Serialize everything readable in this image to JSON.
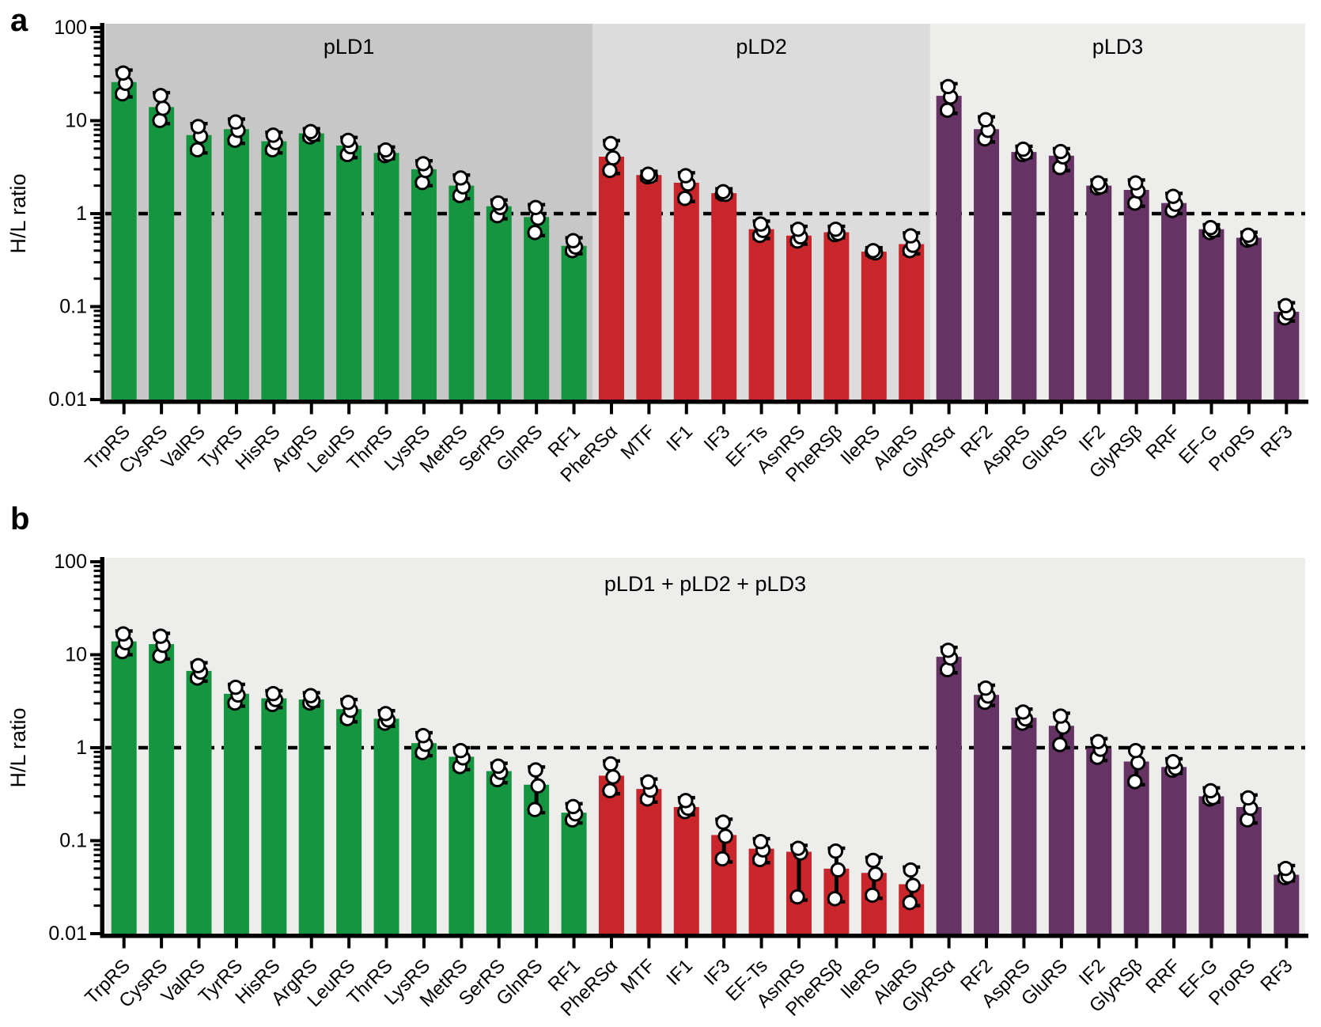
{
  "figure": {
    "ylabel": "H/L ratio",
    "ytick_labels": [
      "100",
      "10",
      "1",
      "0.1",
      "0.01"
    ],
    "panels": [
      {
        "letter": "a",
        "region_titles": [
          "pLD1",
          "pLD2",
          "pLD3"
        ]
      },
      {
        "letter": "b",
        "title": "pLD1 + pLD2 + pLD3"
      }
    ]
  },
  "colors": {
    "green": "#169540",
    "red": "#C8262B",
    "purple": "#653364",
    "bg_pld1": "#C7C7C7",
    "bg_pld2": "#DCDCDC",
    "bg_pld3": "#EDEDEC",
    "bg_panel_b": "#EDEDEC",
    "reference_line": "#000000",
    "error_bar": "#000000",
    "point_fill": "#FFFFFF",
    "point_stroke": "#000000"
  },
  "groups": [
    {
      "name": "pLD1",
      "count": 13,
      "bar_color": "#169540",
      "region_color": "#C7C7C7"
    },
    {
      "name": "pLD2",
      "count": 9,
      "bar_color": "#C8262B",
      "region_color": "#DCDCDC"
    },
    {
      "name": "pLD3",
      "count": 10,
      "bar_color": "#653364",
      "region_color": "#EDEDEC"
    }
  ],
  "chart_data": [
    {
      "type": "bar",
      "panel": "a",
      "title_labels": [
        "pLD1",
        "pLD2",
        "pLD3"
      ],
      "ylabel": "H/L ratio",
      "yscale": "log",
      "ylim": [
        0.01,
        100
      ],
      "reference_line": 1,
      "legend_position": "none",
      "grid": false,
      "bars": [
        {
          "label": "TrpRS",
          "group": "pLD1",
          "v": 26,
          "err": [
            18,
            35
          ]
        },
        {
          "label": "CysRS",
          "group": "pLD1",
          "v": 14,
          "err": [
            9.3,
            20
          ]
        },
        {
          "label": "ValRS",
          "group": "pLD1",
          "v": 7.0,
          "err": [
            4.5,
            9.3
          ]
        },
        {
          "label": "TyrRS",
          "group": "pLD1",
          "v": 8.1,
          "err": [
            5.7,
            10.4
          ]
        },
        {
          "label": "HisRS",
          "group": "pLD1",
          "v": 6.0,
          "err": [
            4.5,
            7.5
          ]
        },
        {
          "label": "ArgRS",
          "group": "pLD1",
          "v": 7.3,
          "err": [
            6.2,
            8.2
          ]
        },
        {
          "label": "LeuRS",
          "group": "pLD1",
          "v": 5.4,
          "err": [
            4.0,
            6.6
          ]
        },
        {
          "label": "ThrRS",
          "group": "pLD1",
          "v": 4.5,
          "err": [
            3.9,
            5.2
          ]
        },
        {
          "label": "LysRS",
          "group": "pLD1",
          "v": 3.0,
          "err": [
            2.0,
            3.7
          ]
        },
        {
          "label": "MetRS",
          "group": "pLD1",
          "v": 2.0,
          "err": [
            1.45,
            2.6
          ]
        },
        {
          "label": "SerRS",
          "group": "pLD1",
          "v": 1.2,
          "err": [
            0.88,
            1.4
          ]
        },
        {
          "label": "GlnRS",
          "group": "pLD1",
          "v": 0.92,
          "err": [
            0.58,
            1.25
          ]
        },
        {
          "label": "RF1",
          "group": "pLD1",
          "v": 0.45,
          "err": [
            0.37,
            0.55
          ]
        },
        {
          "label": "PheRSα",
          "group": "pLD2",
          "v": 4.1,
          "err": [
            2.7,
            6.1
          ]
        },
        {
          "label": "MTF",
          "group": "pLD2",
          "v": 2.6,
          "err": [
            2.3,
            2.85
          ]
        },
        {
          "label": "IF1",
          "group": "pLD2",
          "v": 2.15,
          "err": [
            1.35,
            2.75
          ]
        },
        {
          "label": "IF3",
          "group": "pLD2",
          "v": 1.66,
          "err": [
            1.5,
            1.85
          ]
        },
        {
          "label": "EF-Ts",
          "group": "pLD2",
          "v": 0.68,
          "err": [
            0.54,
            0.83
          ]
        },
        {
          "label": "AsnRS",
          "group": "pLD2",
          "v": 0.58,
          "err": [
            0.47,
            0.73
          ]
        },
        {
          "label": "PheRSβ",
          "group": "pLD2",
          "v": 0.63,
          "err": [
            0.55,
            0.73
          ]
        },
        {
          "label": "IleRS",
          "group": "pLD2",
          "v": 0.39,
          "err": [
            0.36,
            0.43
          ]
        },
        {
          "label": "AlaRS",
          "group": "pLD2",
          "v": 0.47,
          "err": [
            0.37,
            0.62
          ]
        },
        {
          "label": "GlyRSα",
          "group": "pLD3",
          "v": 18.5,
          "err": [
            12,
            25
          ]
        },
        {
          "label": "RF2",
          "group": "pLD3",
          "v": 8.1,
          "err": [
            5.9,
            11
          ]
        },
        {
          "label": "AspRS",
          "group": "pLD3",
          "v": 4.6,
          "err": [
            4.0,
            5.3
          ]
        },
        {
          "label": "GluRS",
          "group": "pLD3",
          "v": 4.2,
          "err": [
            2.9,
            5.0
          ]
        },
        {
          "label": "IF2",
          "group": "pLD3",
          "v": 2.0,
          "err": [
            1.75,
            2.3
          ]
        },
        {
          "label": "GlyRSβ",
          "group": "pLD3",
          "v": 1.8,
          "err": [
            1.2,
            2.3
          ]
        },
        {
          "label": "RRF",
          "group": "pLD3",
          "v": 1.3,
          "err": [
            1.0,
            1.65
          ]
        },
        {
          "label": "EF-G",
          "group": "pLD3",
          "v": 0.68,
          "err": [
            0.58,
            0.76
          ]
        },
        {
          "label": "ProRS",
          "group": "pLD3",
          "v": 0.55,
          "err": [
            0.48,
            0.63
          ]
        },
        {
          "label": "RF3",
          "group": "pLD3",
          "v": 0.088,
          "err": [
            0.07,
            0.11
          ]
        }
      ]
    },
    {
      "type": "bar",
      "panel": "b",
      "title": "pLD1 + pLD2 + pLD3",
      "ylabel": "H/L ratio",
      "yscale": "log",
      "ylim": [
        0.01,
        100
      ],
      "reference_line": 1,
      "legend_position": "none",
      "grid": false,
      "bars": [
        {
          "label": "TrpRS",
          "group": "pLD1",
          "v": 13.9,
          "err": [
            10,
            18
          ]
        },
        {
          "label": "CysRS",
          "group": "pLD1",
          "v": 13.0,
          "err": [
            9,
            17
          ]
        },
        {
          "label": "ValRS",
          "group": "pLD1",
          "v": 6.7,
          "err": [
            5.2,
            8.2
          ]
        },
        {
          "label": "TyrRS",
          "group": "pLD1",
          "v": 3.8,
          "err": [
            2.8,
            4.8
          ]
        },
        {
          "label": "HisRS",
          "group": "pLD1",
          "v": 3.4,
          "err": [
            2.7,
            4.1
          ]
        },
        {
          "label": "ArgRS",
          "group": "pLD1",
          "v": 3.3,
          "err": [
            2.8,
            3.9
          ]
        },
        {
          "label": "LeuRS",
          "group": "pLD1",
          "v": 2.6,
          "err": [
            1.9,
            3.3
          ]
        },
        {
          "label": "ThrRS",
          "group": "pLD1",
          "v": 2.05,
          "err": [
            1.7,
            2.5
          ]
        },
        {
          "label": "LysRS",
          "group": "pLD1",
          "v": 1.12,
          "err": [
            0.82,
            1.45
          ]
        },
        {
          "label": "MetRS",
          "group": "pLD1",
          "v": 0.8,
          "err": [
            0.58,
            1.0
          ]
        },
        {
          "label": "SerRS",
          "group": "pLD1",
          "v": 0.56,
          "err": [
            0.42,
            0.68
          ]
        },
        {
          "label": "GlnRS",
          "group": "pLD1",
          "v": 0.4,
          "err": [
            0.2,
            0.62
          ]
        },
        {
          "label": "RF1",
          "group": "pLD1",
          "v": 0.2,
          "err": [
            0.155,
            0.25
          ]
        },
        {
          "label": "PheRSα",
          "group": "pLD2",
          "v": 0.5,
          "err": [
            0.32,
            0.72
          ]
        },
        {
          "label": "MTF",
          "group": "pLD2",
          "v": 0.36,
          "err": [
            0.26,
            0.46
          ]
        },
        {
          "label": "IF1",
          "group": "pLD2",
          "v": 0.23,
          "err": [
            0.19,
            0.29
          ]
        },
        {
          "label": "IF3",
          "group": "pLD2",
          "v": 0.115,
          "err": [
            0.059,
            0.17
          ]
        },
        {
          "label": "EF-Ts",
          "group": "pLD2",
          "v": 0.082,
          "err": [
            0.058,
            0.105
          ]
        },
        {
          "label": "AsnRS",
          "group": "pLD2",
          "v": 0.076,
          "err": [
            0.023,
            0.089
          ]
        },
        {
          "label": "PheRSβ",
          "group": "pLD2",
          "v": 0.05,
          "err": [
            0.022,
            0.083
          ]
        },
        {
          "label": "IleRS",
          "group": "pLD2",
          "v": 0.045,
          "err": [
            0.024,
            0.066
          ]
        },
        {
          "label": "AlaRS",
          "group": "pLD2",
          "v": 0.034,
          "err": [
            0.02,
            0.052
          ]
        },
        {
          "label": "GlyRSα",
          "group": "pLD3",
          "v": 9.5,
          "err": [
            6.4,
            12
          ]
        },
        {
          "label": "RF2",
          "group": "pLD3",
          "v": 3.7,
          "err": [
            2.85,
            4.7
          ]
        },
        {
          "label": "AspRS",
          "group": "pLD3",
          "v": 2.1,
          "err": [
            1.7,
            2.6
          ]
        },
        {
          "label": "GluRS",
          "group": "pLD3",
          "v": 1.72,
          "err": [
            1.0,
            2.35
          ]
        },
        {
          "label": "IF2",
          "group": "pLD3",
          "v": 0.99,
          "err": [
            0.73,
            1.25
          ]
        },
        {
          "label": "GlyRSβ",
          "group": "pLD3",
          "v": 0.71,
          "err": [
            0.4,
            1.0
          ]
        },
        {
          "label": "RRF",
          "group": "pLD3",
          "v": 0.62,
          "err": [
            0.53,
            0.76
          ]
        },
        {
          "label": "EF-G",
          "group": "pLD3",
          "v": 0.3,
          "err": [
            0.26,
            0.37
          ]
        },
        {
          "label": "ProRS",
          "group": "pLD3",
          "v": 0.23,
          "err": [
            0.155,
            0.31
          ]
        },
        {
          "label": "RF3",
          "group": "pLD3",
          "v": 0.043,
          "err": [
            0.037,
            0.054
          ]
        }
      ]
    }
  ]
}
